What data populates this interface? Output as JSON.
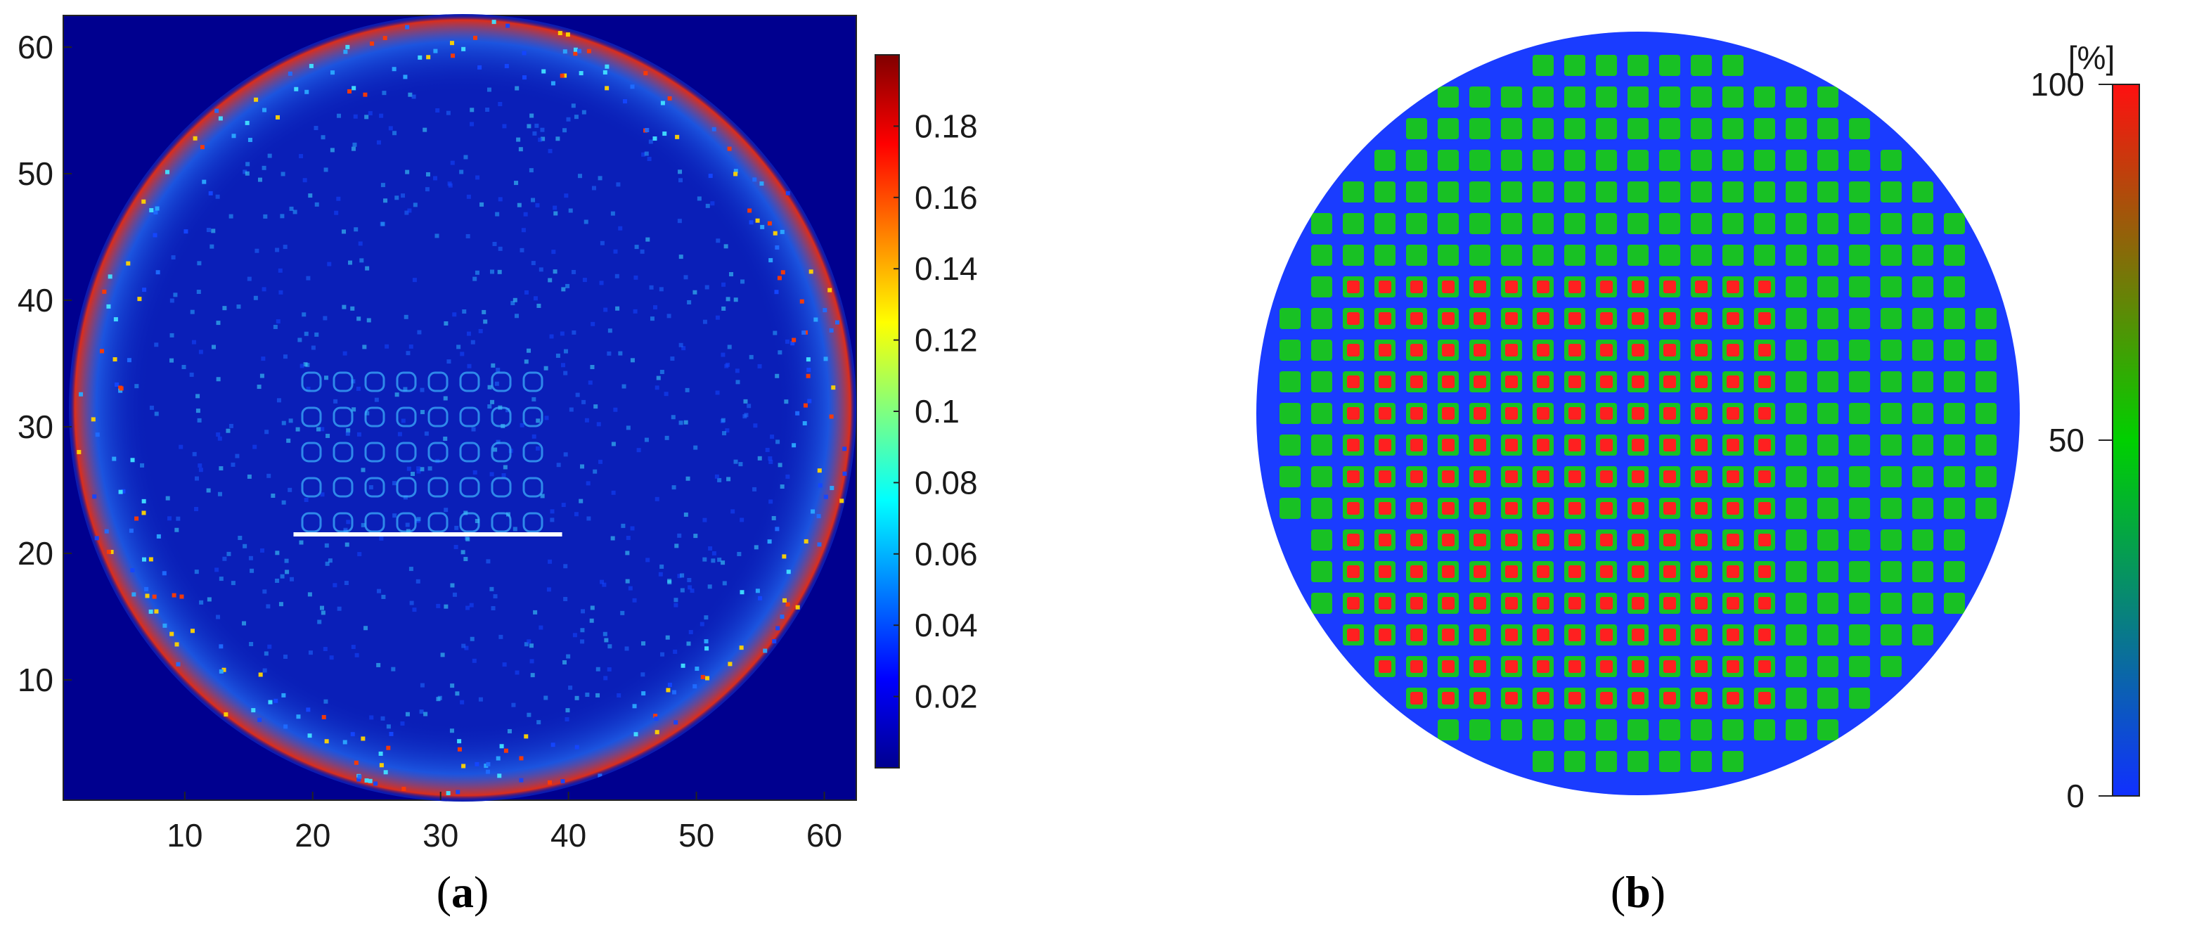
{
  "chart_data": [
    {
      "type": "heatmap",
      "panel_label": "a",
      "xlim": [
        0.5,
        62.5
      ],
      "ylim": [
        0.5,
        62.5
      ],
      "x_ticks": [
        10,
        20,
        30,
        40,
        50,
        60
      ],
      "y_ticks": [
        10,
        20,
        30,
        40,
        50,
        60
      ],
      "colorbar": {
        "colormap": "jet",
        "range": [
          0,
          0.2
        ],
        "ticks": [
          0.02,
          0.04,
          0.06,
          0.08,
          0.1,
          0.12,
          0.14,
          0.16,
          0.18
        ],
        "tick_labels": [
          "0.02",
          "0.04",
          "0.06",
          "0.08",
          "0.1",
          "0.12",
          "0.14",
          "0.16",
          "0.18"
        ]
      },
      "annotation": {
        "type": "horizontal line",
        "color": "#ffffff",
        "x": [
          18.5,
          39.5
        ],
        "y": 21.5
      },
      "grid": false
    },
    {
      "type": "heatmap",
      "panel_label": "b",
      "shape": "circular wafer map",
      "colorbar": {
        "unit": "[%]",
        "colormap": "blue-green-red",
        "range": [
          0,
          100
        ],
        "ticks": [
          0,
          50,
          100
        ],
        "tick_labels": [
          "0",
          "50",
          "100"
        ]
      },
      "grid": false
    }
  ],
  "colors": {
    "background": "#00008f",
    "wafer_blue": "#1a3cff",
    "green": "#00d000",
    "red": "#ff2020",
    "annotation_line": "#ffffff"
  }
}
